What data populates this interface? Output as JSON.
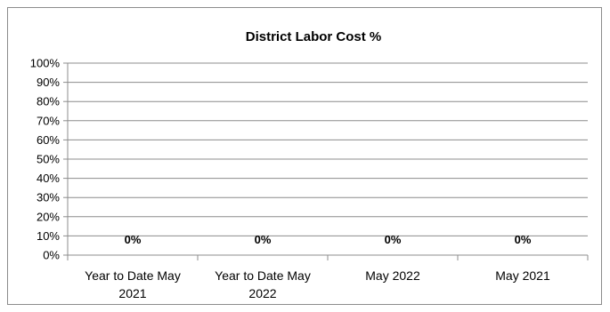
{
  "chart_data": {
    "type": "bar",
    "title": "District Labor Cost %",
    "categories": [
      [
        "Year to Date May",
        "2021"
      ],
      [
        "Year to Date May",
        "2022"
      ],
      [
        "May 2022"
      ],
      [
        "May 2021"
      ]
    ],
    "values": [
      0,
      0,
      0,
      0
    ],
    "data_labels": [
      "0%",
      "0%",
      "0%",
      "0%"
    ],
    "ylim": [
      0,
      100
    ],
    "yticks": [
      "0%",
      "10%",
      "20%",
      "30%",
      "40%",
      "50%",
      "60%",
      "70%",
      "80%",
      "90%",
      "100%"
    ],
    "grid": true,
    "legend": "none"
  }
}
